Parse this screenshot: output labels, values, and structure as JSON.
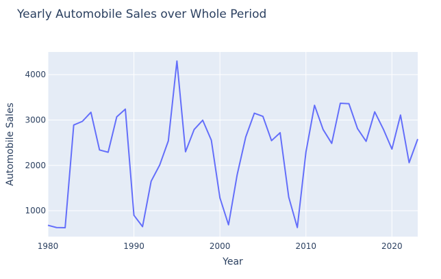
{
  "chart_data": {
    "type": "line",
    "title": "Yearly Automobile Sales over Whole Period",
    "xlabel": "Year",
    "ylabel": "Automobile Sales",
    "xlim": [
      1980,
      2023
    ],
    "ylim": [
      430,
      4500
    ],
    "x_ticks": [
      1980,
      1990,
      2000,
      2010,
      2020
    ],
    "y_ticks": [
      1000,
      2000,
      3000,
      4000
    ],
    "grid": true,
    "legend": "none",
    "colors": {
      "plot_bg": "#e5ecf6",
      "grid": "#ffffff",
      "line": "#636efa",
      "text": "#2a3f5f"
    },
    "series": [
      {
        "x": [
          1980,
          1981,
          1982,
          1983,
          1984,
          1985,
          1986,
          1987,
          1988,
          1989,
          1990,
          1991,
          1992,
          1993,
          1994,
          1995,
          1996,
          1997,
          1998,
          1999,
          2000,
          2001,
          2002,
          2003,
          2004,
          2005,
          2006,
          2007,
          2008,
          2009,
          2010,
          2011,
          2012,
          2013,
          2014,
          2015,
          2016,
          2017,
          2018,
          2019,
          2020,
          2021,
          2022,
          2023
        ],
        "y": [
          680,
          630,
          625,
          2890,
          2970,
          3170,
          2340,
          2290,
          3070,
          3240,
          900,
          650,
          1650,
          2010,
          2540,
          4300,
          2300,
          2790,
          2995,
          2555,
          1285,
          690,
          1790,
          2625,
          3150,
          3080,
          2545,
          2720,
          1300,
          630,
          2290,
          3325,
          2790,
          2485,
          3370,
          3360,
          2810,
          2530,
          3180,
          2800,
          2360,
          3110,
          2060,
          2580
        ]
      }
    ]
  }
}
